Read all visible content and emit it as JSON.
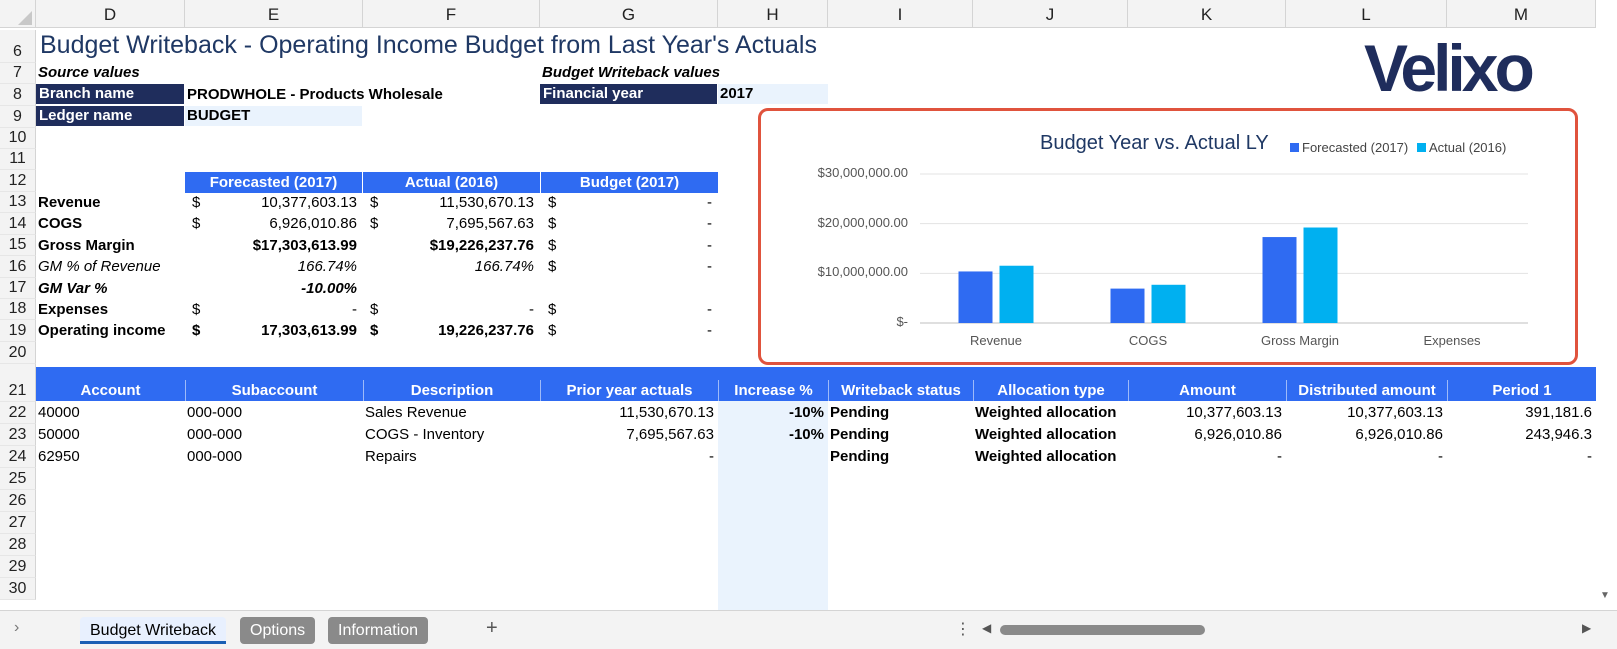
{
  "columns": [
    "D",
    "E",
    "F",
    "G",
    "H",
    "I",
    "J",
    "K",
    "L",
    "M"
  ],
  "rows": [
    "6",
    "7",
    "8",
    "9",
    "10",
    "11",
    "12",
    "13",
    "14",
    "15",
    "16",
    "17",
    "18",
    "19",
    "20",
    "21",
    "22",
    "23",
    "24",
    "25",
    "26",
    "27",
    "28",
    "29",
    "30"
  ],
  "title": "Budget Writeback - Operating Income Budget from Last Year's Actuals",
  "logo": "Velixo",
  "source_values_label": "Source values",
  "writeback_values_label": "Budget Writeback values",
  "branch_label": "Branch name",
  "branch_value": "PRODWHOLE - Products Wholesale",
  "ledger_label": "Ledger name",
  "ledger_value": "BUDGET",
  "fy_label": "Financial year",
  "fy_value": "2017",
  "summary": {
    "headers": [
      "Forecasted (2017)",
      "Actual (2016)",
      "Budget (2017)"
    ],
    "rows": [
      {
        "label": "Revenue",
        "f_cur": "$",
        "f": "10,377,603.13",
        "a_cur": "$",
        "a": "11,530,670.13",
        "b_cur": "$",
        "b": "-",
        "style": "b"
      },
      {
        "label": "COGS",
        "f_cur": "$",
        "f": "6,926,010.86",
        "a_cur": "$",
        "a": "7,695,567.63",
        "b_cur": "$",
        "b": "-",
        "style": "b"
      },
      {
        "label": "Gross Margin",
        "f_cur": "",
        "f": "$17,303,613.99",
        "a_cur": "",
        "a": "$19,226,237.76",
        "b_cur": "$",
        "b": "-",
        "style": "b"
      },
      {
        "label": "GM % of Revenue",
        "f_cur": "",
        "f": "166.74%",
        "a_cur": "",
        "a": "166.74%",
        "b_cur": "$",
        "b": "-",
        "style": "i"
      },
      {
        "label": "GM Var %",
        "f_cur": "",
        "f": "-10.00%",
        "a_cur": "",
        "a": "",
        "b_cur": "",
        "b": "",
        "style": "bi"
      },
      {
        "label": "Expenses",
        "f_cur": "$",
        "f": "-",
        "a_cur": "$",
        "a": "-",
        "b_cur": "$",
        "b": "-",
        "style": "b"
      },
      {
        "label": "Operating income",
        "f_cur": "$",
        "f": "17,303,613.99",
        "a_cur": "$",
        "a": "19,226,237.76",
        "b_cur": "$",
        "b": "-",
        "style": "b"
      }
    ]
  },
  "table": {
    "headers": [
      "Account",
      "Subaccount",
      "Description",
      "Prior year actuals",
      "Increase %",
      "Writeback status",
      "Allocation type",
      "Amount",
      "Distributed amount",
      "Period 1"
    ],
    "rows": [
      [
        "40000",
        "000-000",
        "Sales Revenue",
        "11,530,670.13",
        "-10%",
        "Pending",
        "Weighted allocation",
        "10,377,603.13",
        "10,377,603.13",
        "391,181.6"
      ],
      [
        "50000",
        "000-000",
        "COGS - Inventory",
        "7,695,567.63",
        "-10%",
        "Pending",
        "Weighted allocation",
        "6,926,010.86",
        "6,926,010.86",
        "243,946.3"
      ],
      [
        "62950",
        "000-000",
        "Repairs",
        "-",
        "",
        "Pending",
        "Weighted allocation",
        "-",
        "-",
        "-"
      ]
    ]
  },
  "chart_data": {
    "type": "bar",
    "title": "Budget Year vs. Actual LY",
    "categories": [
      "Revenue",
      "COGS",
      "Gross Margin",
      "Expenses"
    ],
    "series": [
      {
        "name": "Forecasted (2017)",
        "color": "#2f6bf2",
        "values": [
          10377603.13,
          6926010.86,
          17303613.99,
          0
        ]
      },
      {
        "name": "Actual (2016)",
        "color": "#00b0f0",
        "values": [
          11530670.13,
          7695567.63,
          19226237.76,
          0
        ]
      }
    ],
    "yticks": [
      "$-",
      "$10,000,000.00",
      "$20,000,000.00",
      "$30,000,000.00"
    ],
    "ylim": [
      0,
      30000000
    ],
    "legend": "top-right",
    "grid": true
  },
  "tabs": [
    {
      "label": "Budget Writeback",
      "active": true
    },
    {
      "label": "Options",
      "active": false
    },
    {
      "label": "Information",
      "active": false
    }
  ],
  "add_sheet": "+"
}
